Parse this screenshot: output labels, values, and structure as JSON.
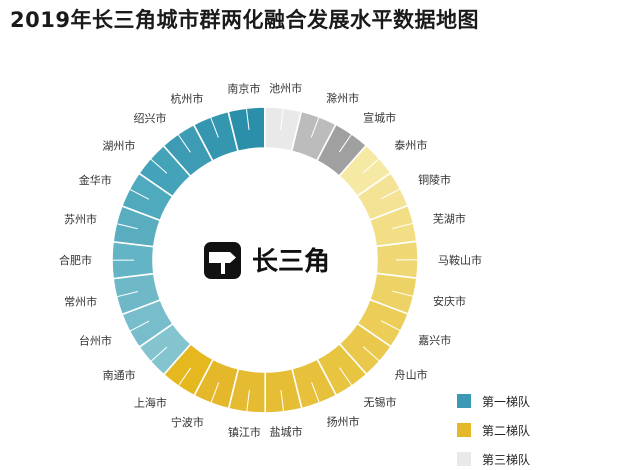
{
  "title": "2019年长三角城市群两化融合发展水平数据地图",
  "center_label": "长三角",
  "logo_icon": "signpost-icon",
  "chart_data": {
    "type": "pie",
    "variant": "donut",
    "title": "2019年长三角城市群两化融合发展水平数据地图",
    "categories": [
      "合肥市",
      "苏州市",
      "金华市",
      "湖州市",
      "绍兴市",
      "杭州市",
      "南京市",
      "池州市",
      "滁州市",
      "宣城市",
      "泰州市",
      "铜陵市",
      "芜湖市",
      "马鞍山市",
      "安庆市",
      "嘉兴市",
      "舟山市",
      "无锡市",
      "扬州市",
      "盐城市",
      "镇江市",
      "宁波市",
      "上海市",
      "南通市",
      "台州市",
      "常州市"
    ],
    "tiers": [
      1,
      1,
      1,
      1,
      1,
      1,
      1,
      3,
      3,
      3,
      2,
      2,
      2,
      2,
      2,
      2,
      2,
      2,
      2,
      2,
      2,
      2,
      2,
      1,
      1,
      1
    ],
    "values": [
      1,
      1,
      1,
      1,
      1,
      1,
      1,
      1,
      1,
      1,
      1,
      1,
      1,
      1,
      1,
      1,
      1,
      1,
      1,
      1,
      1,
      1,
      1,
      1,
      1,
      1
    ],
    "colors": [
      "#63b4c4",
      "#59adbf",
      "#4faabe",
      "#45a3b9",
      "#3d9cb4",
      "#3596af",
      "#2c8fa9",
      "#e9e9e9",
      "#bcbcbc",
      "#a0a0a0",
      "#f6e9a4",
      "#f4e395",
      "#f2de84",
      "#efd873",
      "#edd266",
      "#ebcd58",
      "#e9c84b",
      "#e8c540",
      "#e7c13c",
      "#e6be36",
      "#e5bb31",
      "#e4b82a",
      "#e5b820",
      "#84c4cf",
      "#78bdcb",
      "#6eb8c7"
    ],
    "legend": [
      {
        "label": "第一梯队",
        "color": "#3a9ab3"
      },
      {
        "label": "第二梯队",
        "color": "#e4b82a"
      },
      {
        "label": "第三梯队",
        "color": "#e9e9e9"
      }
    ],
    "legend_position": "bottom-right"
  }
}
